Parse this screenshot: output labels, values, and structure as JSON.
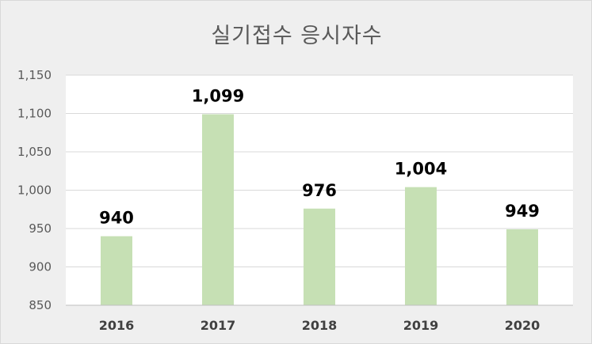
{
  "chart_data": {
    "type": "bar",
    "title": "실기접수 응시자수",
    "categories": [
      "2016",
      "2017",
      "2018",
      "2019",
      "2020"
    ],
    "values": [
      940,
      1099,
      976,
      1004,
      949
    ],
    "data_labels": [
      "940",
      "1,099",
      "976",
      "1,004",
      "949"
    ],
    "ylim": [
      850,
      1150
    ],
    "yticks": [
      850,
      900,
      950,
      1000,
      1050,
      1100,
      1150
    ],
    "ytick_labels": [
      "850",
      "900",
      "950",
      "1,000",
      "1,050",
      "1,100",
      "1,150"
    ],
    "grid": true,
    "legend": "none",
    "bar_color": "#c6e0b4",
    "grid_color": "#d9d9d9",
    "background_color": "#efefef"
  }
}
